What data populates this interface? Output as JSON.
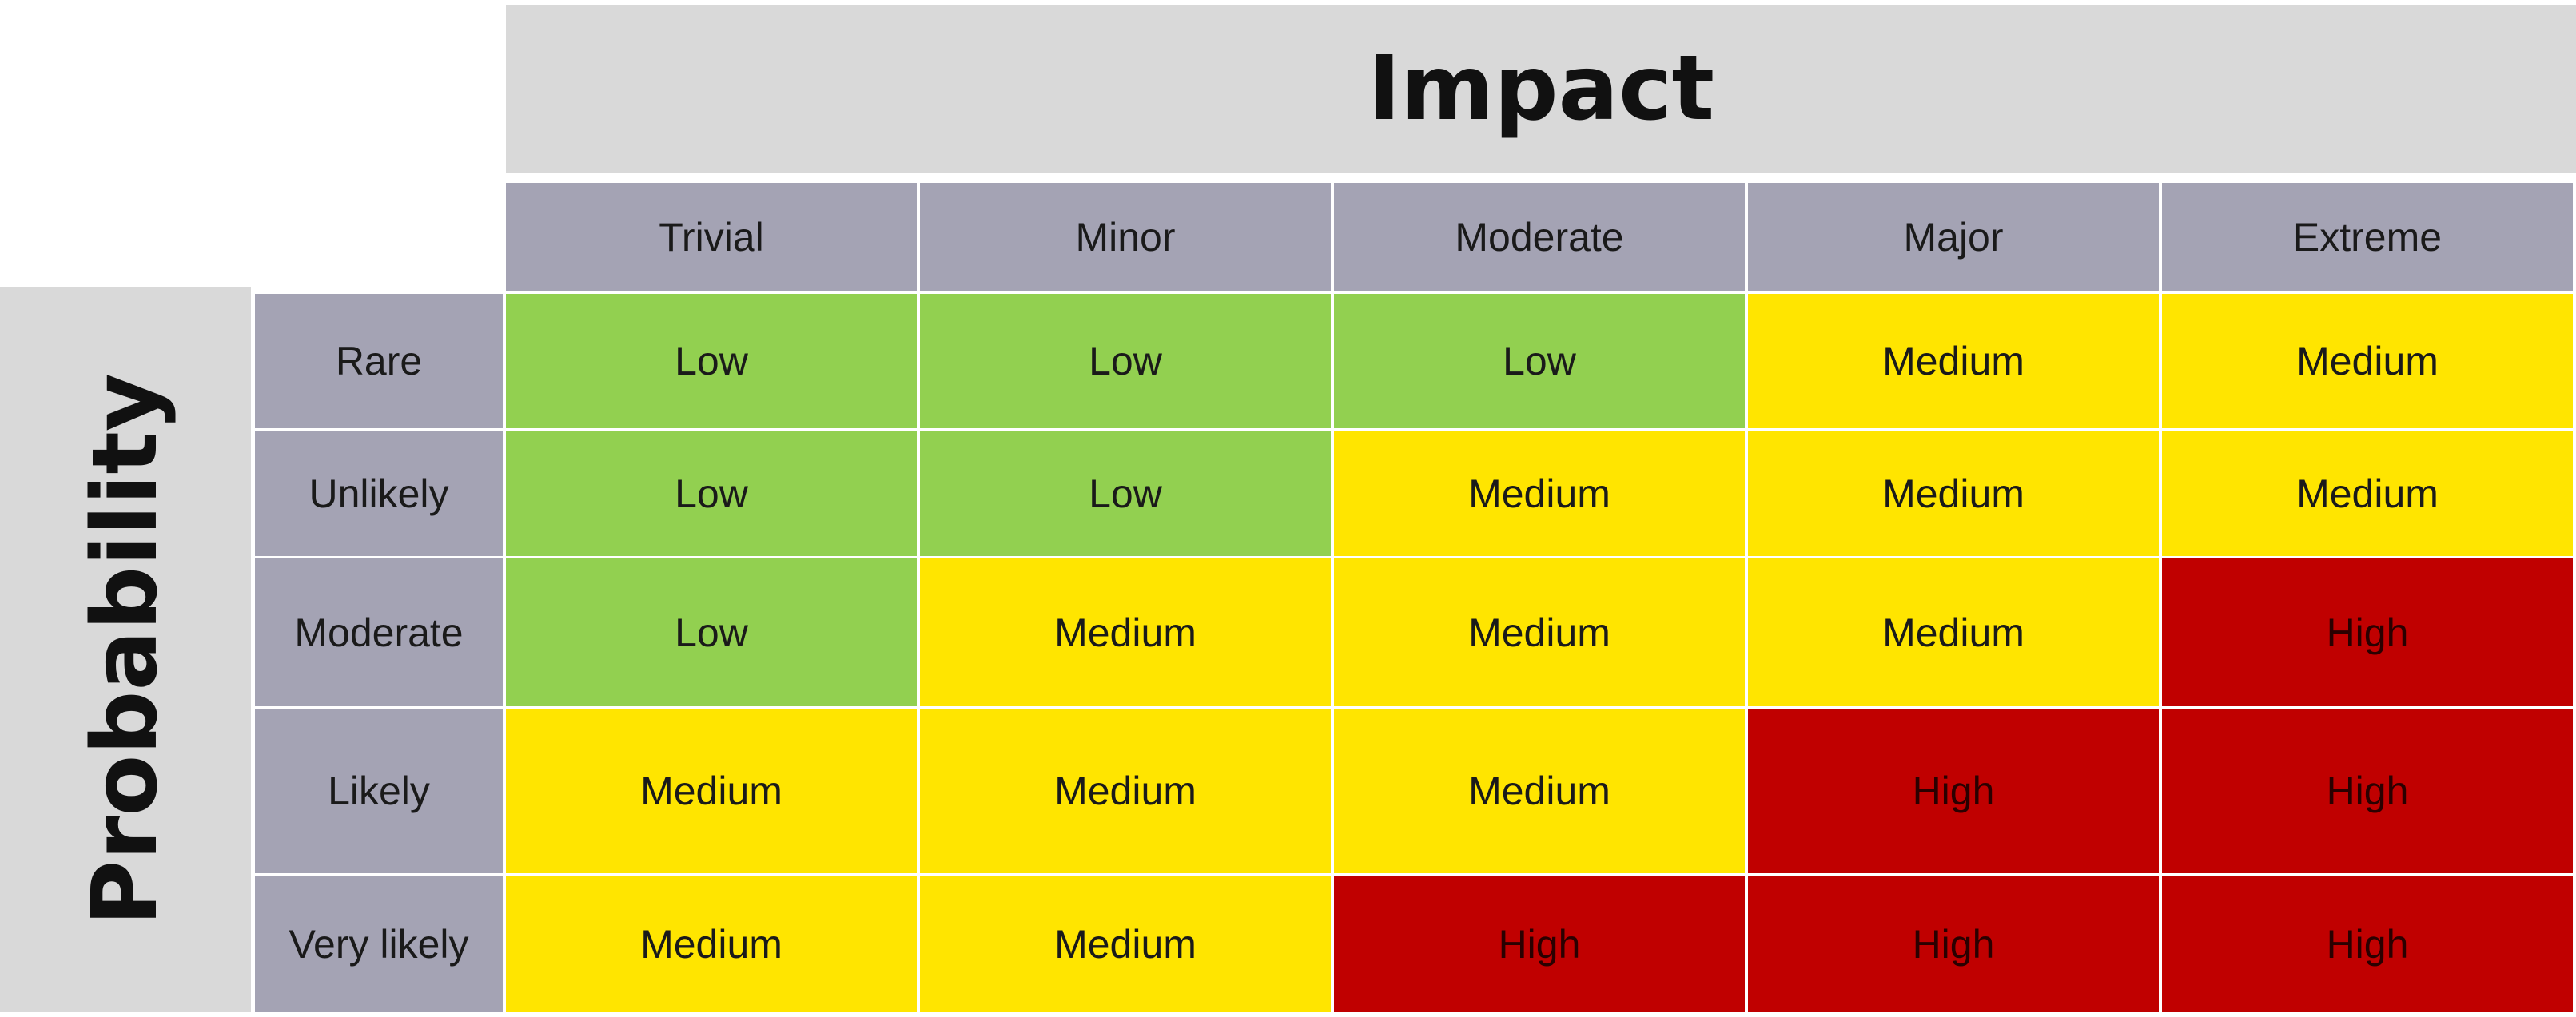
{
  "matrix": {
    "impact_label": "Impact",
    "probability_label": "Probability",
    "impact_levels": [
      "Trivial",
      "Minor",
      "Moderate",
      "Major",
      "Extreme"
    ],
    "probability_levels": [
      "Rare",
      "Unlikely",
      "Moderate",
      "Likely",
      "Very likely"
    ],
    "rows": [
      [
        "Low",
        "Low",
        "Low",
        "Medium",
        "Medium"
      ],
      [
        "Low",
        "Low",
        "Medium",
        "Medium",
        "Medium"
      ],
      [
        "Low",
        "Medium",
        "Medium",
        "Medium",
        "High"
      ],
      [
        "Medium",
        "Medium",
        "Medium",
        "High",
        "High"
      ],
      [
        "Medium",
        "Medium",
        "High",
        "High",
        "High"
      ]
    ],
    "colors": {
      "Low": "#92d050",
      "Medium": "#ffe500",
      "High": "#c00000",
      "header": "#a4a3b4",
      "title_band": "#d9d9d9"
    }
  }
}
